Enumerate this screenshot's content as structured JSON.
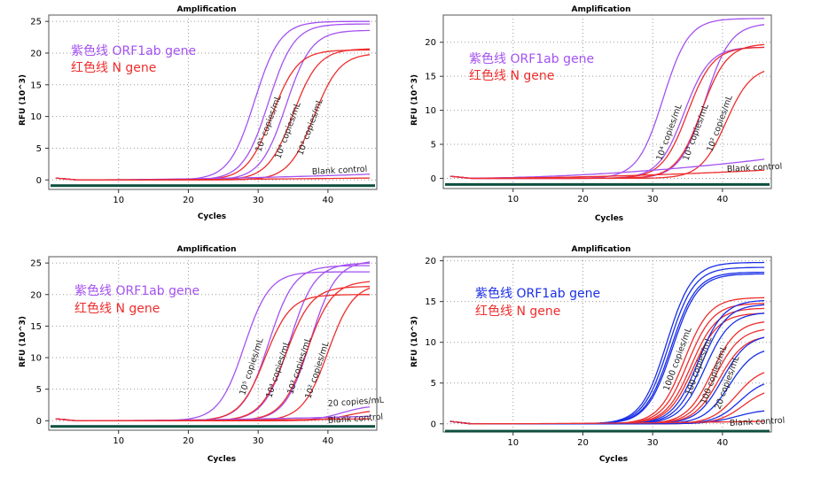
{
  "colors": {
    "purple": "#a452f0",
    "red": "#ee2d2d",
    "blue": "#1a2fe6",
    "base": "#0f4f3f"
  },
  "chart_data": [
    {
      "type": "line",
      "title": "Amplification",
      "xlabel": "Cycles",
      "ylabel": "RFU (10^3)",
      "xlim": [
        0,
        47
      ],
      "ylim": [
        -1.5,
        26
      ],
      "xticks": [
        "10",
        "20",
        "30",
        "40"
      ],
      "yticks": [
        "0",
        "5",
        "10",
        "15",
        "20",
        "25"
      ],
      "grid": "dotted",
      "legend": [
        {
          "text": "紫色线 ORF1ab gene",
          "color": "#a452f0"
        },
        {
          "text": "红色线 N gene",
          "color": "#ee2d2d"
        }
      ],
      "annotations": [
        "10⁵ copies/mL",
        "10⁴ copies/mL",
        "10³ copies/mL",
        "Blank control"
      ],
      "series": [
        {
          "color": "#a452f0",
          "ct": 29.5,
          "plateau": 25.0
        },
        {
          "color": "#a452f0",
          "ct": 31.5,
          "plateau": 24.6
        },
        {
          "color": "#a452f0",
          "ct": 34.0,
          "plateau": 23.6
        },
        {
          "color": "#ee2d2d",
          "ct": 32.0,
          "plateau": 20.5
        },
        {
          "color": "#ee2d2d",
          "ct": 35.0,
          "plateau": 20.7
        },
        {
          "color": "#ee2d2d",
          "ct": 38.0,
          "plateau": 20.0
        },
        {
          "color": "#a452f0",
          "flat": 0.9
        },
        {
          "color": "#ee2d2d",
          "flat": 0.3
        }
      ]
    },
    {
      "type": "line",
      "title": "Amplification",
      "xlabel": "Cycles",
      "ylabel": "RFU (10^3)",
      "xlim": [
        0,
        47
      ],
      "ylim": [
        -1.5,
        24
      ],
      "xticks": [
        "10",
        "20",
        "30",
        "40"
      ],
      "yticks": [
        "0",
        "5",
        "10",
        "15",
        "20"
      ],
      "grid": "dotted",
      "legend": [
        {
          "text": "紫色线 ORF1ab gene",
          "color": "#a452f0"
        },
        {
          "text": "红色线 N gene",
          "color": "#ee2d2d"
        }
      ],
      "annotations": [
        "10⁴ copies/mL",
        "10³ copies/mL",
        "10² copies/mL",
        "Blank control"
      ],
      "series": [
        {
          "color": "#a452f0",
          "ct": 31.5,
          "plateau": 23.5
        },
        {
          "color": "#a452f0",
          "ct": 34.5,
          "plateau": 19.3
        },
        {
          "color": "#a452f0",
          "ct": 37.5,
          "plateau": 22.8
        },
        {
          "color": "#ee2d2d",
          "ct": 35.0,
          "plateau": 19.3
        },
        {
          "color": "#ee2d2d",
          "ct": 37.0,
          "plateau": 19.8
        },
        {
          "color": "#ee2d2d",
          "ct": 40.5,
          "plateau": 16.5
        },
        {
          "color": "#a452f0",
          "flat": 2.8
        },
        {
          "color": "#ee2d2d",
          "flat": 1.2
        }
      ]
    },
    {
      "type": "line",
      "title": "Amplification",
      "xlabel": "Cycles",
      "ylabel": "RFU (10^3)",
      "xlim": [
        0,
        47
      ],
      "ylim": [
        -1.5,
        26
      ],
      "xticks": [
        "10",
        "20",
        "30",
        "40"
      ],
      "yticks": [
        "0",
        "5",
        "10",
        "15",
        "20",
        "25"
      ],
      "grid": "dotted",
      "legend": [
        {
          "text": "紫色线 ORF1ab gene",
          "color": "#a452f0"
        },
        {
          "text": "红色线 N gene",
          "color": "#ee2d2d"
        }
      ],
      "annotations": [
        "10⁵ copies/mL",
        "10⁴ copies/mL",
        "10³ copies/mL",
        "10² copies/mL",
        "20 copies/mL",
        "Blank control"
      ],
      "series": [
        {
          "color": "#a452f0",
          "ct": 28.0,
          "plateau": 23.6
        },
        {
          "color": "#a452f0",
          "ct": 31.5,
          "plateau": 24.6
        },
        {
          "color": "#a452f0",
          "ct": 34.5,
          "plateau": 25.0
        },
        {
          "color": "#a452f0",
          "ct": 37.5,
          "plateau": 25.4
        },
        {
          "color": "#ee2d2d",
          "ct": 31.0,
          "plateau": 20.0
        },
        {
          "color": "#ee2d2d",
          "ct": 34.0,
          "plateau": 21.3
        },
        {
          "color": "#ee2d2d",
          "ct": 37.0,
          "plateau": 22.2
        },
        {
          "color": "#ee2d2d",
          "ct": 40.0,
          "plateau": 21.8
        },
        {
          "color": "#a452f0",
          "ct": 42.0,
          "plateau": 2.5,
          "k": 0.5
        },
        {
          "color": "#ee2d2d",
          "ct": 43.0,
          "plateau": 1.8,
          "k": 0.5
        },
        {
          "color": "#a452f0",
          "flat": 0.7
        },
        {
          "color": "#ee2d2d",
          "flat": 0.3
        }
      ]
    },
    {
      "type": "line",
      "title": "Amplification",
      "xlabel": "Cycles",
      "ylabel": "RFU (10^3)",
      "xlim": [
        0,
        47
      ],
      "ylim": [
        -1.0,
        20.5
      ],
      "xticks": [
        "10",
        "20",
        "30",
        "40"
      ],
      "yticks": [
        "0",
        "5",
        "10",
        "15",
        "20"
      ],
      "grid": "dotted",
      "legend": [
        {
          "text": "紫色线 ORF1ab gene",
          "color": "#1a2fe6"
        },
        {
          "text": "红色线 N gene",
          "color": "#ee2d2d"
        }
      ],
      "annotations": [
        "1000 copies/mL",
        "100 copies/mL",
        "100 copies/mL",
        "20 copies/mL",
        "Blank control"
      ],
      "series": [
        {
          "color": "#1a2fe6",
          "ct": 32.0,
          "plateau": 19.8
        },
        {
          "color": "#1a2fe6",
          "ct": 32.3,
          "plateau": 19.2
        },
        {
          "color": "#1a2fe6",
          "ct": 32.6,
          "plateau": 18.6
        },
        {
          "color": "#1a2fe6",
          "ct": 32.8,
          "plateau": 18.4
        },
        {
          "color": "#ee2d2d",
          "ct": 34.5,
          "plateau": 15.5
        },
        {
          "color": "#ee2d2d",
          "ct": 35.0,
          "plateau": 14.8
        },
        {
          "color": "#ee2d2d",
          "ct": 35.5,
          "plateau": 14.2
        },
        {
          "color": "#ee2d2d",
          "ct": 35.8,
          "plateau": 13.6
        },
        {
          "color": "#1a2fe6",
          "ct": 36.5,
          "plateau": 15.2
        },
        {
          "color": "#1a2fe6",
          "ct": 37.0,
          "plateau": 14.7
        },
        {
          "color": "#1a2fe6",
          "ct": 37.5,
          "plateau": 13.7
        },
        {
          "color": "#ee2d2d",
          "ct": 38.5,
          "plateau": 12.7
        },
        {
          "color": "#ee2d2d",
          "ct": 39.0,
          "plateau": 11.8
        },
        {
          "color": "#ee2d2d",
          "ct": 39.5,
          "plateau": 10.9
        },
        {
          "color": "#1a2fe6",
          "ct": 40.0,
          "plateau": 11.0
        },
        {
          "color": "#1a2fe6",
          "ct": 41.0,
          "plateau": 9.5
        },
        {
          "color": "#ee2d2d",
          "ct": 42.0,
          "plateau": 7.0
        },
        {
          "color": "#1a2fe6",
          "ct": 42.5,
          "plateau": 5.6
        },
        {
          "color": "#ee2d2d",
          "ct": 43.0,
          "plateau": 4.5
        },
        {
          "color": "#1a2fe6",
          "ct": 42.0,
          "plateau": 1.8,
          "k": 0.5
        },
        {
          "color": "#ee2d2d",
          "flat": 0.3
        }
      ]
    }
  ]
}
